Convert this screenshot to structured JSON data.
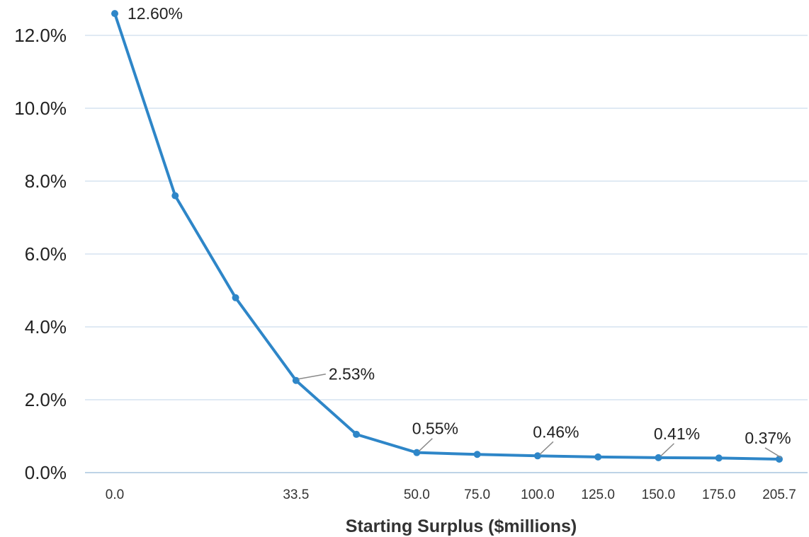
{
  "chart_data": {
    "type": "line",
    "title": "",
    "xlabel": "Starting Surplus ($millions)",
    "ylabel": "",
    "ylim": [
      0,
      12
    ],
    "y_ticks": [
      "0.0%",
      "2.0%",
      "4.0%",
      "6.0%",
      "8.0%",
      "10.0%",
      "12.0%"
    ],
    "y_tick_values": [
      0,
      2,
      4,
      6,
      8,
      10,
      12
    ],
    "x_tick_labels": [
      "0.0",
      "",
      "",
      "33.5",
      "",
      "50.0",
      "75.0",
      "100.0",
      "125.0",
      "150.0",
      "175.0",
      "205.7"
    ],
    "grid": true,
    "legend": "none",
    "series": [
      {
        "values": [
          12.6,
          7.6,
          4.8,
          2.53,
          1.05,
          0.55,
          0.5,
          0.46,
          0.43,
          0.41,
          0.4,
          0.37
        ],
        "data_labels": [
          "12.60%",
          "",
          "",
          "2.53%",
          "",
          "0.55%",
          "",
          "0.46%",
          "",
          "0.41%",
          "",
          "0.37%"
        ]
      }
    ],
    "colors": {
      "line": "#2e86c8",
      "grid": "#d6e4f0",
      "axis": "#bdd3e6"
    }
  }
}
